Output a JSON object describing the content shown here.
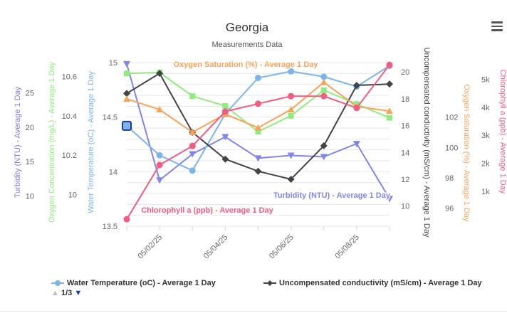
{
  "chart_data": {
    "type": "line",
    "title": "Georgia",
    "subtitle": "Measurements Data",
    "x": [
      "05/01/25",
      "05/02/25",
      "05/03/25",
      "05/04/25",
      "05/05/25",
      "05/06/25",
      "05/07/25",
      "05/08/25",
      "05/09/25"
    ],
    "x_tick_labels": [
      "05/02/25",
      "05/04/25",
      "05/06/25",
      "05/08/25"
    ],
    "axes": [
      {
        "id": "turbidity",
        "title": "Turbidity (NTU) - Average 1 Day",
        "color": "#7c7ce0",
        "side": "left",
        "min": 5.6,
        "max": 29.4,
        "ticks": [
          10,
          15,
          20,
          25
        ]
      },
      {
        "id": "oxygen_conc",
        "title": "Oxygen Concentration (mg/L) - Average 1 Day",
        "color": "#90ed7d",
        "side": "left",
        "min": 9.84,
        "max": 10.67,
        "ticks": [
          10,
          10.2,
          10.4,
          10.6
        ]
      },
      {
        "id": "water_temp",
        "title": "Water Temperature (oC) - Average 1 Day",
        "color": "#7cb5ec",
        "side": "left",
        "min": 13.5,
        "max": 15,
        "ticks": [
          13.5,
          14,
          14.5,
          15
        ]
      },
      {
        "id": "conductivity",
        "title": "Uncompensated conductivity (mS/cm) - Average 1 Day",
        "color": "#434348",
        "side": "right",
        "min": 8.5,
        "max": 20.7,
        "ticks": [
          10,
          12,
          14,
          16,
          18,
          20
        ]
      },
      {
        "id": "oxygen_sat",
        "title": "Oxygen Saturation (%) - Average 1 Day",
        "color": "#f7a35c",
        "side": "right",
        "min": 94.8,
        "max": 105.6,
        "ticks": [
          96,
          98,
          100,
          102
        ]
      },
      {
        "id": "chlorophyll",
        "title": "Chlorophyll a (ppb) - Average 1 Day",
        "color": "#f15c80",
        "side": "right",
        "min": -250,
        "max": 5600,
        "ticks": [
          1000,
          2000,
          3000,
          4000,
          5000
        ],
        "tick_labels": [
          "1k",
          "2k",
          "3k",
          "4k",
          "5k"
        ]
      }
    ],
    "series": [
      {
        "name": "Turbidity (NTU) - Average 1 Day",
        "axis": "turbidity",
        "color": "#8085e9",
        "marker": "triangle-down",
        "values": [
          29.2,
          12.3,
          16.1,
          18.6,
          15.5,
          15.9,
          15.7,
          17.6,
          9.6
        ]
      },
      {
        "name": "Oxygen Concentration (mg/L) - Average 1 Day",
        "axis": "oxygen_conc",
        "color": "#90ed7d",
        "marker": "square",
        "values": [
          10.615,
          10.62,
          10.5,
          10.45,
          10.32,
          10.4,
          10.53,
          10.46,
          10.39
        ]
      },
      {
        "name": "Water Temperature (oC) - Average 1 Day",
        "axis": "water_temp",
        "color": "#7cb5ec",
        "marker": "circle",
        "values": [
          14.42,
          14.15,
          14.01,
          14.53,
          14.86,
          14.92,
          14.87,
          14.78,
          14.97
        ]
      },
      {
        "name": "Uncompensated conductivity (mS/cm) - Average 1 Day",
        "axis": "conductivity",
        "color": "#434348",
        "marker": "diamond",
        "values": [
          18.4,
          19.9,
          15.5,
          13.5,
          12.6,
          12.0,
          14.5,
          19.0,
          19.1
        ]
      },
      {
        "name": "Oxygen Saturation (%) - Average 1 Day",
        "axis": "oxygen_sat",
        "color": "#f7a35c",
        "marker": "triangle",
        "values": [
          103.2,
          102.5,
          101.0,
          102.2,
          101.3,
          102.5,
          104.3,
          102.7,
          102.4
        ]
      },
      {
        "name": "Chlorophyll a (ppb) - Average 1 Day",
        "axis": "chlorophyll",
        "color": "#f15c80",
        "marker": "circle",
        "values": [
          0,
          1940,
          2620,
          3850,
          4130,
          4400,
          4400,
          3980,
          5520
        ]
      }
    ],
    "annotations": [
      {
        "text": "Oxygen Saturation (%) - Average 1 Day",
        "series": "Oxygen Saturation (%) - Average 1 Day",
        "color": "#f7a35c"
      },
      {
        "text": "Turbidity (NTU) - Average 1 Day",
        "series": "Turbidity (NTU) - Average 1 Day",
        "color": "#8085e9"
      },
      {
        "text": "Chlorophyll a (ppb) - Average 1 Day",
        "series": "Chlorophyll a (ppb) - Average 1 Day",
        "color": "#f15c80"
      }
    ],
    "highlighted_point": {
      "series": "Water Temperature (oC) - Average 1 Day",
      "x": "05/01/25",
      "y": 14.42
    },
    "grid": true,
    "legend_position": "bottom",
    "legend_visible_items": [
      {
        "label": "Water Temperature (oC) - Average 1 Day",
        "color": "#7cb5ec",
        "marker": "circle"
      },
      {
        "label": "Uncompensated conductivity (mS/cm) - Average 1 Day",
        "color": "#434348",
        "marker": "diamond"
      }
    ]
  },
  "legend_nav": {
    "page_label": "1/3",
    "up_icon": "triangle-up-icon",
    "down_icon": "triangle-down-icon"
  },
  "menu": {
    "icon": "hamburger-menu-icon"
  }
}
